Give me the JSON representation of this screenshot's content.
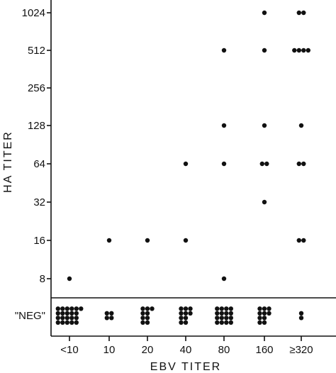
{
  "chart_data": {
    "type": "scatter",
    "xlabel": "EBV TITER",
    "ylabel": "HA TITER",
    "x_categories": [
      "<10",
      "10",
      "20",
      "40",
      "80",
      "160",
      "≥320"
    ],
    "y_categories": [
      "\"NEG\"",
      "8",
      "16",
      "32",
      "64",
      "128",
      "256",
      "512",
      "1024"
    ],
    "grid": false,
    "legend": "none",
    "points": [
      {
        "x": "<10",
        "y": "8",
        "count": 1
      },
      {
        "x": "10",
        "y": "16",
        "count": 1
      },
      {
        "x": "20",
        "y": "16",
        "count": 1
      },
      {
        "x": "40",
        "y": "16",
        "count": 1
      },
      {
        "x": "40",
        "y": "64",
        "count": 1
      },
      {
        "x": "80",
        "y": "8",
        "count": 1
      },
      {
        "x": "80",
        "y": "64",
        "count": 1
      },
      {
        "x": "80",
        "y": "128",
        "count": 1
      },
      {
        "x": "80",
        "y": "512",
        "count": 1
      },
      {
        "x": "160",
        "y": "32",
        "count": 1
      },
      {
        "x": "160",
        "y": "64",
        "count": 2
      },
      {
        "x": "160",
        "y": "128",
        "count": 1
      },
      {
        "x": "160",
        "y": "512",
        "count": 1
      },
      {
        "x": "160",
        "y": "1024",
        "count": 1
      },
      {
        "x": "≥320",
        "y": "16",
        "count": 2
      },
      {
        "x": "≥320",
        "y": "64",
        "count": 2
      },
      {
        "x": "≥320",
        "y": "128",
        "count": 1
      },
      {
        "x": "≥320",
        "y": "512",
        "count": 4
      },
      {
        "x": "≥320",
        "y": "1024",
        "count": 2
      },
      {
        "x": "<10",
        "y": "\"NEG\"",
        "count": 21
      },
      {
        "x": "10",
        "y": "\"NEG\"",
        "count": 4
      },
      {
        "x": "20",
        "y": "\"NEG\"",
        "count": 9
      },
      {
        "x": "40",
        "y": "\"NEG\"",
        "count": 10
      },
      {
        "x": "80",
        "y": "\"NEG\"",
        "count": 16
      },
      {
        "x": "160",
        "y": "\"NEG\"",
        "count": 10
      },
      {
        "x": "≥320",
        "y": "\"NEG\"",
        "count": 2
      }
    ]
  }
}
